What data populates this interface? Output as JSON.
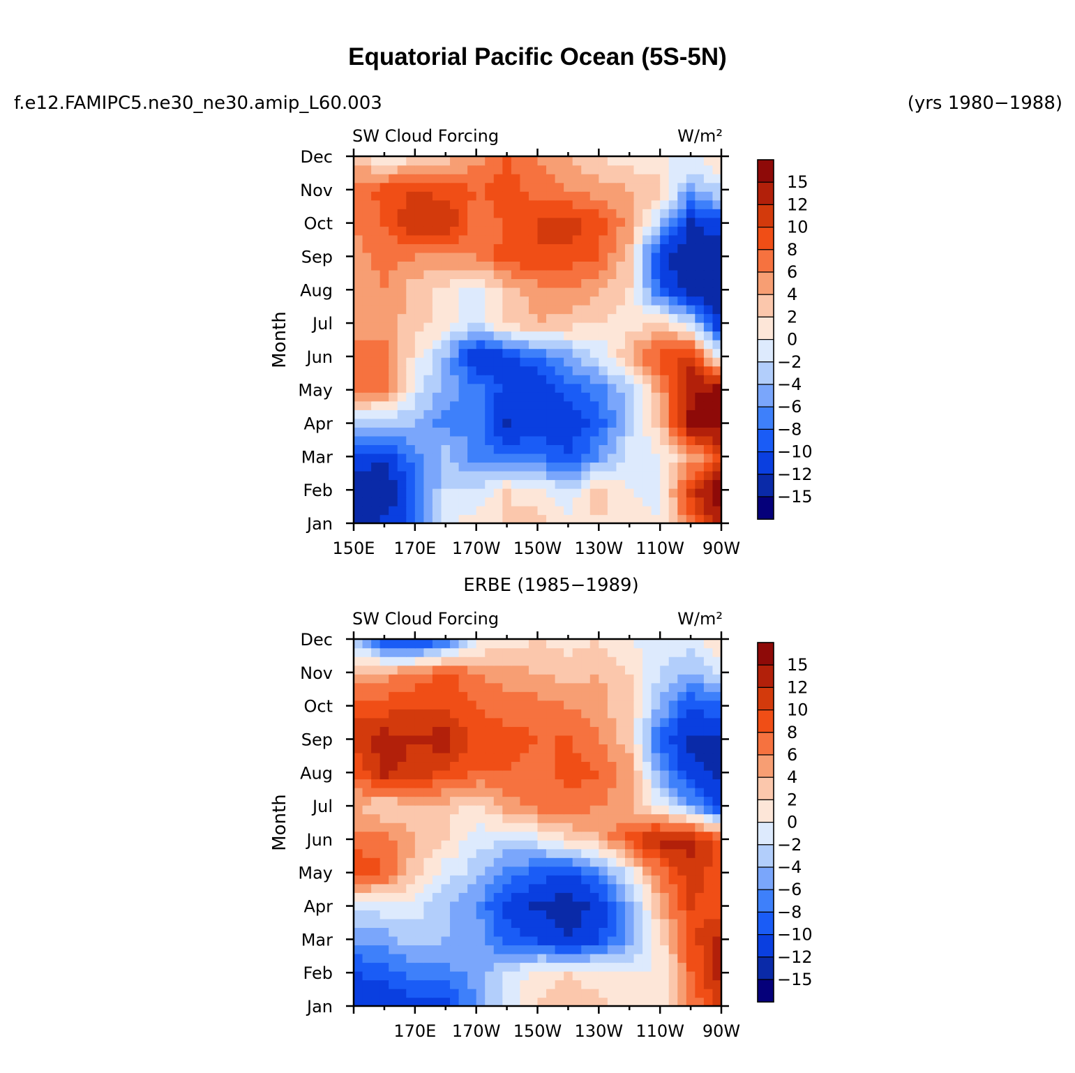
{
  "title": "Equatorial Pacific Ocean (5S-5N)",
  "case_name": "f.e12.FAMIPC5.ne30_ne30.amip_L60.003",
  "years": "(yrs 1980−1988)",
  "obs_title": "ERBE (1985−1989)",
  "colors": {
    "palette": [
      "#05007a",
      "#0a2aa8",
      "#0a3fe0",
      "#1a5cf6",
      "#3e80fa",
      "#7aa6fb",
      "#b2cefb",
      "#ddeafd",
      "#fde6d8",
      "#fbc7ac",
      "#f79e73",
      "#f6723f",
      "#f04e16",
      "#d33a0c",
      "#b2200a",
      "#8e0a08"
    ]
  },
  "chart_data": [
    {
      "type": "heatmap",
      "panel": "model",
      "left_label": "SW Cloud Forcing",
      "right_label": "W/m²",
      "ylabel": "Month",
      "xlabel": "",
      "x_ticks": [
        "150E",
        "170E",
        "170W",
        "150W",
        "130W",
        "110W",
        "90W"
      ],
      "y_ticks": [
        "Jan",
        "Feb",
        "Mar",
        "Apr",
        "May",
        "Jun",
        "Jul",
        "Aug",
        "Sep",
        "Oct",
        "Nov",
        "Dec"
      ],
      "xlim": [
        150,
        270
      ],
      "ylim": [
        "Jan",
        "Dec"
      ],
      "colorbar_levels": [
        "15",
        "12",
        "10",
        "8",
        "6",
        "4",
        "2",
        "0",
        "−2",
        "−4",
        "−6",
        "−8",
        "−10",
        "−12",
        "−15"
      ],
      "x": [
        150,
        160,
        170,
        180,
        190,
        200,
        210,
        220,
        230,
        240,
        250,
        260,
        270
      ],
      "values": [
        [
          -14,
          -13,
          -10,
          -1,
          0,
          1,
          2,
          0,
          1,
          0,
          -1,
          6,
          13
        ],
        [
          -15,
          -16,
          -10,
          -3,
          -3,
          1,
          0,
          -3,
          2,
          -1,
          -2,
          10,
          16
        ],
        [
          -12,
          -13,
          -8,
          -4,
          -8,
          -9,
          -9,
          -11,
          -7,
          -2,
          -1,
          3,
          9
        ],
        [
          -4,
          -4,
          -5,
          -8,
          -7,
          -14,
          -12,
          -13,
          -10,
          -4,
          2,
          14,
          15
        ],
        [
          6,
          5,
          -2,
          -6,
          -8,
          -12,
          -14,
          -10,
          -8,
          -4,
          4,
          13,
          15
        ],
        [
          7,
          6,
          0,
          -5,
          -14,
          -12,
          -9,
          -6,
          -3,
          3,
          8,
          10,
          -2
        ],
        [
          3,
          4,
          2,
          0,
          -3,
          2,
          3,
          2,
          1,
          0,
          2,
          -3,
          -14
        ],
        [
          3,
          5,
          2,
          0,
          -2,
          2,
          4,
          5,
          3,
          1,
          -10,
          -15,
          -16
        ],
        [
          4,
          6,
          5,
          5,
          5,
          8,
          9,
          8,
          7,
          2,
          -13,
          -16,
          -16
        ],
        [
          5,
          7,
          11,
          11,
          6,
          7,
          9,
          10,
          8,
          4,
          -4,
          -14,
          -11
        ],
        [
          6,
          8,
          9,
          8,
          7,
          8,
          6,
          5,
          4,
          3,
          2,
          -6,
          -3
        ],
        [
          2,
          -1,
          0,
          2,
          4,
          7,
          5,
          3,
          1,
          0,
          -1,
          -1,
          1
        ]
      ]
    },
    {
      "type": "heatmap",
      "panel": "observations",
      "left_label": "SW Cloud Forcing",
      "right_label": "W/m²",
      "ylabel": "Month",
      "xlabel": "",
      "x_ticks": [
        "170E",
        "170W",
        "150W",
        "130W",
        "110W",
        "90W"
      ],
      "y_ticks": [
        "Jan",
        "Feb",
        "Mar",
        "Apr",
        "May",
        "Jun",
        "Jul",
        "Aug",
        "Sep",
        "Oct",
        "Nov",
        "Dec"
      ],
      "xlim": [
        150,
        270
      ],
      "ylim": [
        "Jan",
        "Dec"
      ],
      "colorbar_levels": [
        "15",
        "12",
        "10",
        "8",
        "6",
        "4",
        "2",
        "0",
        "−2",
        "−4",
        "−6",
        "−8",
        "−10",
        "−12",
        "−15"
      ],
      "x": [
        150,
        160,
        170,
        180,
        190,
        200,
        210,
        220,
        230,
        240,
        250,
        260,
        270
      ],
      "values": [
        [
          -13,
          -13,
          -12,
          -12,
          -7,
          -2,
          1,
          2,
          2,
          0,
          -1,
          5,
          11
        ],
        [
          -11,
          -10,
          -8,
          -8,
          -6,
          -3,
          0,
          1,
          0,
          -1,
          -1,
          7,
          12
        ],
        [
          -7,
          -6,
          -4,
          -5,
          -5,
          -10,
          -11,
          -14,
          -11,
          -6,
          0,
          8,
          12
        ],
        [
          -3,
          -2,
          -2,
          -5,
          -7,
          -12,
          -14,
          -15,
          -13,
          -6,
          3,
          9,
          8
        ],
        [
          9,
          7,
          2,
          -2,
          -4,
          -8,
          -10,
          -11,
          -8,
          -2,
          6,
          10,
          8
        ],
        [
          6,
          6,
          3,
          1,
          -2,
          -3,
          -2,
          1,
          3,
          8,
          12,
          12,
          8
        ],
        [
          3,
          1,
          2,
          2,
          0,
          4,
          6,
          6,
          5,
          3,
          -1,
          -6,
          -12
        ],
        [
          7,
          12,
          10,
          9,
          7,
          7,
          6,
          8,
          7,
          4,
          -6,
          -13,
          -14
        ],
        [
          10,
          12,
          11,
          12,
          8,
          8,
          7,
          7,
          5,
          2,
          -10,
          -14,
          -15
        ],
        [
          8,
          8,
          9,
          9,
          7,
          6,
          6,
          5,
          4,
          1,
          -5,
          -11,
          -9
        ],
        [
          3,
          4,
          5,
          8,
          5,
          4,
          3,
          2,
          3,
          1,
          -3,
          -5,
          -3
        ],
        [
          -3,
          -11,
          -13,
          -10,
          -2,
          0,
          1,
          0,
          1,
          -1,
          -2,
          -2,
          1
        ]
      ]
    }
  ]
}
